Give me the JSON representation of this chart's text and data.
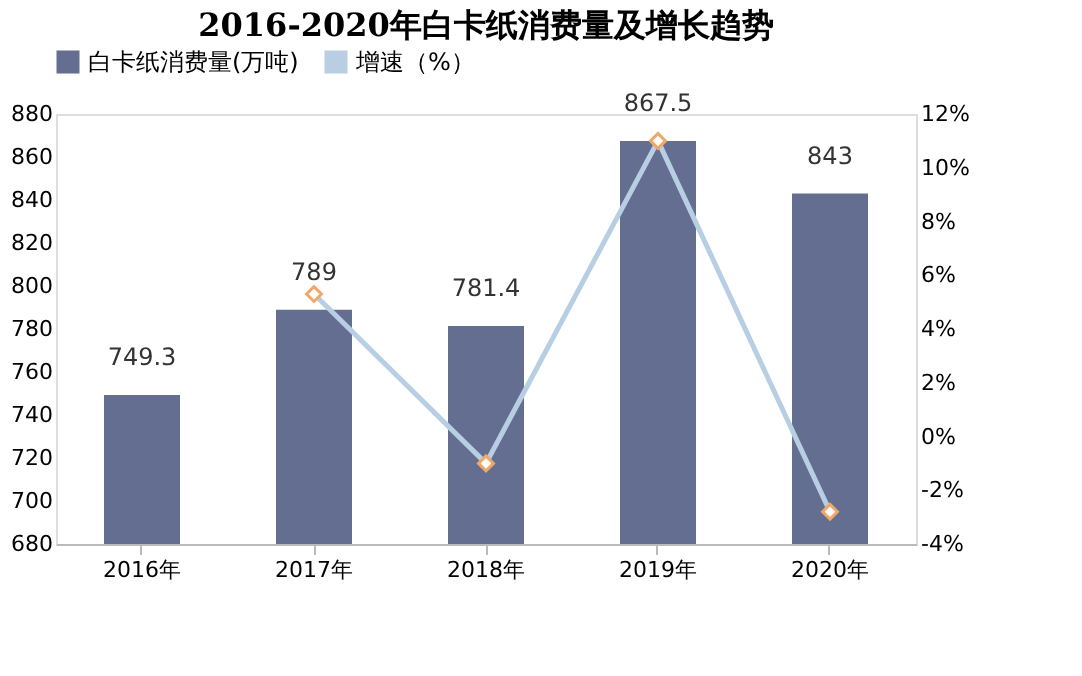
{
  "chart_data": {
    "type": "bar",
    "title": "2016-2020年白卡纸消费量及增长趋势",
    "categories": [
      "2016年",
      "2017年",
      "2018年",
      "2019年",
      "2020年"
    ],
    "series": [
      {
        "name": "白卡纸消费量(万吨)",
        "color": "#646e90",
        "values": [
          749.3,
          789,
          781.4,
          867.5,
          843
        ],
        "value_labels": [
          "749.3",
          "789",
          "781.4",
          "867.5",
          "843"
        ]
      },
      {
        "name": "增速（%）",
        "type": "line",
        "axis": "y2",
        "color": "#b8cfe3",
        "marker": "diamond",
        "values": [
          null,
          5.3,
          -1.0,
          11.0,
          -2.8
        ]
      }
    ],
    "ylim": [
      680,
      880
    ],
    "yticks": [
      680,
      700,
      720,
      740,
      760,
      780,
      800,
      820,
      840,
      860,
      880
    ],
    "y2lim": [
      -4,
      12
    ],
    "y2ticks": [
      {
        "value": -4,
        "label": "-4%"
      },
      {
        "value": -2,
        "label": "-2%"
      },
      {
        "value": 0,
        "label": "0%"
      },
      {
        "value": 2,
        "label": "2%"
      },
      {
        "value": 4,
        "label": "4%"
      },
      {
        "value": 6,
        "label": "6%"
      },
      {
        "value": 8,
        "label": "8%"
      },
      {
        "value": 10,
        "label": "10%"
      },
      {
        "value": 12,
        "label": "12%"
      }
    ],
    "legend": "top",
    "grid": false
  }
}
